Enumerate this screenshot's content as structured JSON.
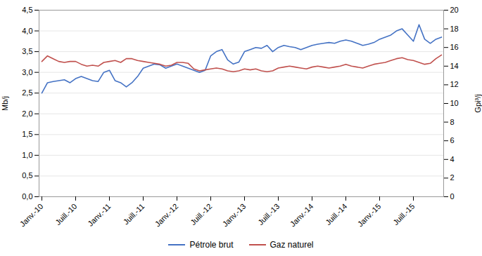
{
  "chart_data": {
    "type": "line",
    "ylabel": "Mb/j",
    "y2label": "Gpi³/j",
    "categories": [
      "Janv.-10",
      null,
      null,
      null,
      null,
      null,
      "Juill.-10",
      null,
      null,
      null,
      null,
      null,
      "Janv.-11",
      null,
      null,
      null,
      null,
      null,
      "Juill.-11",
      null,
      null,
      null,
      null,
      null,
      "Janv.-12",
      null,
      null,
      null,
      null,
      null,
      "Juill.-12",
      null,
      null,
      null,
      null,
      null,
      "Janv.-13",
      null,
      null,
      null,
      null,
      null,
      "Juill.-13",
      null,
      null,
      null,
      null,
      null,
      "Janv.-14",
      null,
      null,
      null,
      null,
      null,
      "Juill.-14",
      null,
      null,
      null,
      null,
      null,
      "Janv.-15",
      null,
      null,
      null,
      null,
      null,
      "Juill.-15",
      null,
      null,
      null,
      null,
      null
    ],
    "series": [
      {
        "name": "Pétrole brut",
        "color": "#4472C4",
        "values": [
          2.5,
          2.75,
          2.78,
          2.8,
          2.82,
          2.75,
          2.85,
          2.9,
          2.85,
          2.8,
          2.78,
          3.0,
          3.05,
          2.8,
          2.75,
          2.65,
          2.75,
          2.9,
          3.1,
          3.15,
          3.2,
          3.18,
          3.1,
          3.15,
          3.2,
          3.15,
          3.1,
          3.05,
          3.0,
          3.05,
          3.4,
          3.5,
          3.55,
          3.3,
          3.2,
          3.25,
          3.5,
          3.55,
          3.6,
          3.58,
          3.65,
          3.5,
          3.6,
          3.65,
          3.62,
          3.6,
          3.55,
          3.6,
          3.65,
          3.68,
          3.7,
          3.72,
          3.7,
          3.75,
          3.78,
          3.75,
          3.7,
          3.65,
          3.68,
          3.72,
          3.8,
          3.85,
          3.9,
          4.0,
          4.05,
          3.9,
          3.75,
          4.15,
          3.8,
          3.7,
          3.8,
          3.85
        ]
      },
      {
        "name": "Gaz naturel",
        "color": "#C0504D",
        "axis": "y2",
        "values": [
          14.5,
          15.1,
          14.8,
          14.5,
          14.4,
          14.5,
          14.5,
          14.2,
          14.0,
          14.1,
          14.0,
          14.4,
          14.5,
          14.6,
          14.4,
          14.8,
          14.8,
          14.6,
          14.5,
          14.4,
          14.3,
          14.2,
          14.0,
          14.1,
          14.4,
          14.4,
          14.3,
          13.7,
          13.5,
          13.6,
          13.7,
          13.8,
          13.7,
          13.5,
          13.4,
          13.5,
          13.7,
          13.6,
          13.7,
          13.5,
          13.4,
          13.5,
          13.8,
          13.9,
          14.0,
          13.9,
          13.8,
          13.7,
          13.9,
          14.0,
          13.9,
          13.8,
          13.9,
          14.0,
          14.2,
          14.0,
          13.9,
          13.8,
          14.0,
          14.2,
          14.3,
          14.4,
          14.6,
          14.8,
          14.9,
          14.7,
          14.6,
          14.4,
          14.2,
          14.3,
          14.8,
          15.2
        ]
      }
    ],
    "ylim": [
      0.0,
      4.5
    ],
    "yticks": [
      {
        "value": 0.0,
        "label": "0,0"
      },
      {
        "value": 0.5,
        "label": "0,5"
      },
      {
        "value": 1.0,
        "label": "1,0"
      },
      {
        "value": 1.5,
        "label": "1,5"
      },
      {
        "value": 2.0,
        "label": "2,0"
      },
      {
        "value": 2.5,
        "label": "2,5"
      },
      {
        "value": 3.0,
        "label": "3,0"
      },
      {
        "value": 3.5,
        "label": "3,5"
      },
      {
        "value": 4.0,
        "label": "4,0"
      },
      {
        "value": 4.5,
        "label": "4,5"
      }
    ],
    "y2lim": [
      0,
      20
    ],
    "y2ticks": [
      0,
      2,
      4,
      6,
      8,
      10,
      12,
      14,
      16,
      18,
      20
    ],
    "grid": true,
    "legend": "bottom"
  }
}
